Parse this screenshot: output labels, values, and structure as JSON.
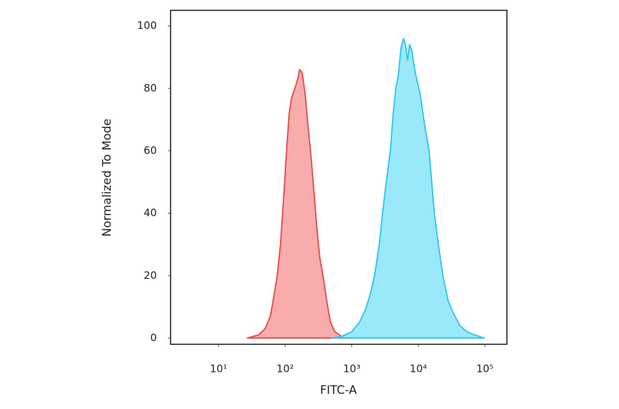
{
  "chart_data": {
    "type": "histogram-overlay",
    "xlabel": "FITC-A",
    "ylabel": "Normalized To Mode",
    "xscale": "log",
    "xlim": [
      1.9,
      214000
    ],
    "ylim": [
      -2,
      105
    ],
    "xticks": [
      {
        "value": 10,
        "label": "10¹"
      },
      {
        "value": 100,
        "label": "10²"
      },
      {
        "value": 1000,
        "label": "10³"
      },
      {
        "value": 10000,
        "label": "10⁴"
      },
      {
        "value": 100000,
        "label": "10⁵"
      }
    ],
    "yticks": [
      0,
      20,
      40,
      60,
      80,
      100
    ],
    "grid": false,
    "series": [
      {
        "color": "#e2504f",
        "fill": "#f9a3a3",
        "x": [
          27,
          40,
          50,
          60,
          66,
          76,
          85,
          95,
          105,
          115,
          125,
          140,
          155,
          165,
          180,
          200,
          220,
          245,
          275,
          300,
          330,
          370,
          420,
          480,
          560,
          700,
          1000
        ],
        "values": [
          0,
          1,
          3,
          7,
          12,
          20,
          30,
          45,
          60,
          72,
          77,
          80,
          83,
          86,
          85,
          78,
          68,
          58,
          45,
          35,
          26,
          20,
          12,
          5,
          2,
          0.5,
          0
        ]
      },
      {
        "color": "#36c6e6",
        "fill": "#8fe7fb",
        "x": [
          500,
          700,
          1000,
          1300,
          1600,
          1900,
          2200,
          2600,
          2900,
          3300,
          3800,
          4200,
          4600,
          5000,
          5500,
          6000,
          6400,
          6900,
          7400,
          8000,
          9000,
          10700,
          12500,
          14500,
          17400,
          20000,
          23400,
          28000,
          33600,
          42000,
          54000,
          70000,
          98000
        ],
        "values": [
          0,
          0.5,
          2,
          5,
          9,
          14,
          20,
          30,
          40,
          50,
          60,
          72,
          80,
          84,
          93,
          96,
          94,
          89,
          94,
          92,
          85,
          78,
          68,
          60,
          40,
          30,
          20,
          12,
          8,
          4,
          2,
          1,
          0
        ]
      }
    ]
  }
}
